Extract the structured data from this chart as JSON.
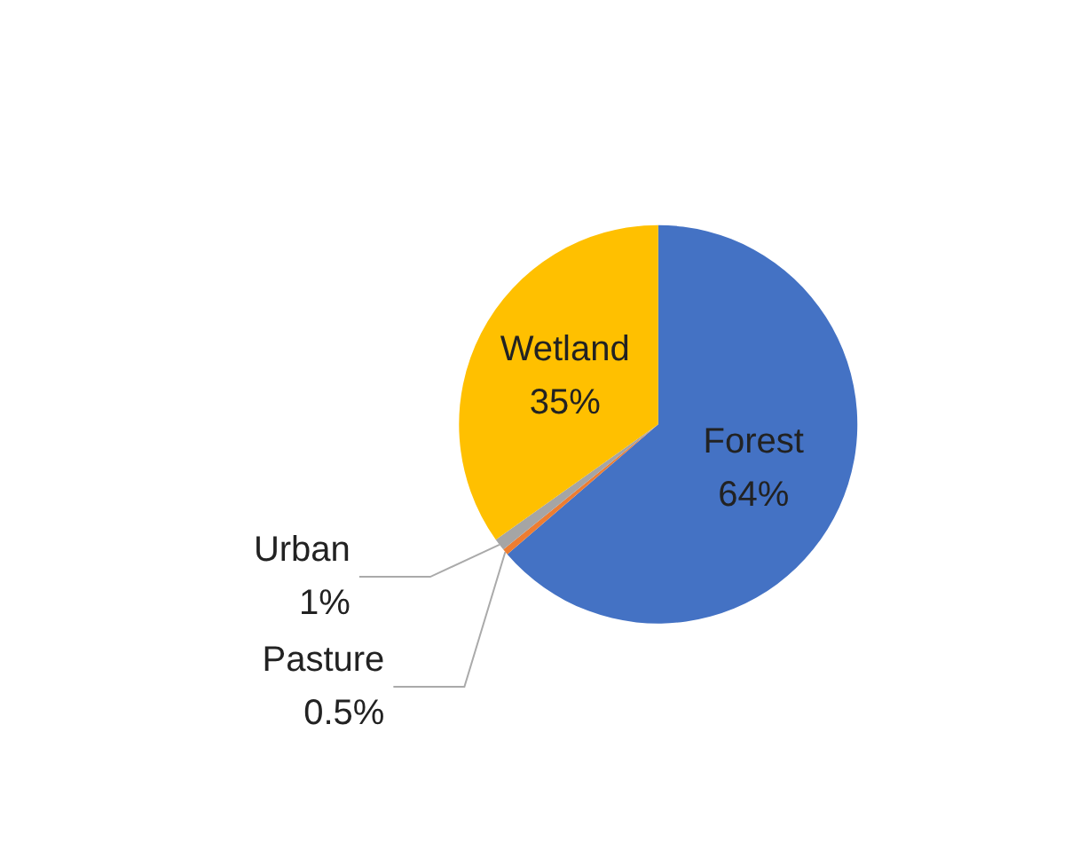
{
  "chart_data": {
    "type": "pie",
    "categories": [
      "Forest",
      "Pasture",
      "Urban",
      "Wetland"
    ],
    "values": [
      64,
      0.5,
      1,
      35
    ],
    "value_labels": [
      "64%",
      "0.5%",
      "1%",
      "35%"
    ],
    "colors": [
      "#4472c4",
      "#ed7d31",
      "#a5a5a5",
      "#ffc000"
    ],
    "legend": false
  }
}
